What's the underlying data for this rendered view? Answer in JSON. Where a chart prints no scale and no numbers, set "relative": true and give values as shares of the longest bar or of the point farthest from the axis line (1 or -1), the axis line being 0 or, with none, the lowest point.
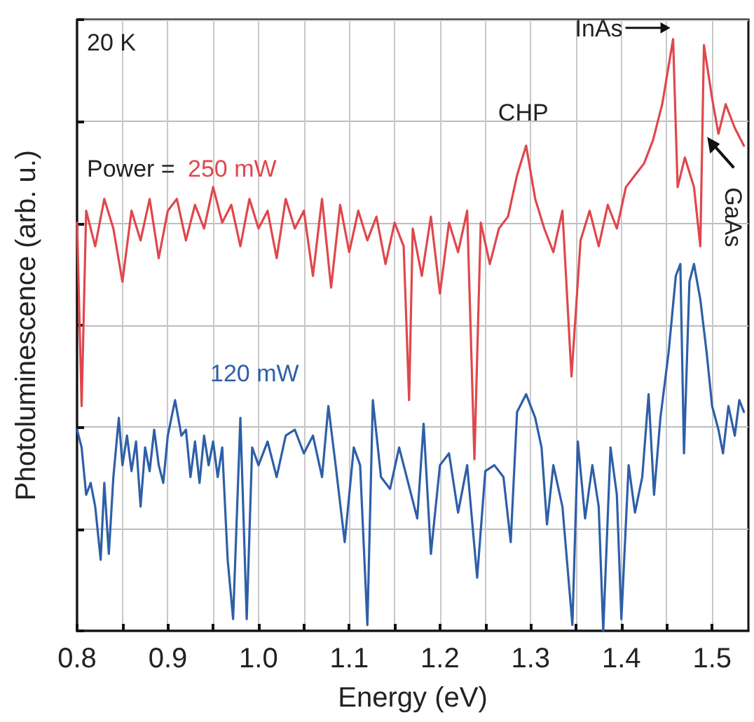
{
  "chart_data": {
    "type": "line",
    "relative": true,
    "xlabel": "Energy (eV)",
    "ylabel": "Photoluminescence (arb. u.)",
    "xlim": [
      0.8,
      1.54
    ],
    "xticks": [
      0.8,
      0.9,
      {
        "value": 1,
        "label": "1.0"
      },
      1.1,
      1.2,
      1.3,
      1.4,
      1.5
    ],
    "grid": true,
    "legend": false,
    "marker": "none",
    "line_style": "solid",
    "annotations": [
      "20 K",
      "Power =",
      {
        "text": "CHP",
        "x": 1.295,
        "y": 0.82
      },
      {
        "text": "InAs",
        "x": 1.457,
        "y": 1
      },
      {
        "text": "GaAs",
        "x": 1.49,
        "y": 0.83
      }
    ],
    "series": [
      {
        "name": "250 mW",
        "color": "#e0474c",
        "x": [
          0.8,
          0.805,
          0.81,
          0.82,
          0.83,
          0.84,
          0.85,
          0.86,
          0.87,
          0.88,
          0.89,
          0.9,
          0.91,
          0.92,
          0.93,
          0.94,
          0.95,
          0.96,
          0.97,
          0.98,
          0.99,
          1.0,
          1.01,
          1.02,
          1.03,
          1.04,
          1.05,
          1.06,
          1.07,
          1.08,
          1.09,
          1.1,
          1.11,
          1.12,
          1.13,
          1.14,
          1.15,
          1.16,
          1.166,
          1.17,
          1.18,
          1.19,
          1.2,
          1.21,
          1.22,
          1.23,
          1.238,
          1.245,
          1.255,
          1.265,
          1.275,
          1.285,
          1.295,
          1.305,
          1.315,
          1.325,
          1.335,
          1.345,
          1.355,
          1.365,
          1.375,
          1.385,
          1.395,
          1.405,
          1.415,
          1.425,
          1.435,
          1.445,
          1.457,
          1.462,
          1.47,
          1.48,
          1.487,
          1.491,
          1.5,
          1.507,
          1.515,
          1.525,
          1.535
        ],
        "values": [
          0.69,
          0.38,
          0.71,
          0.65,
          0.73,
          0.68,
          0.59,
          0.71,
          0.66,
          0.73,
          0.63,
          0.71,
          0.73,
          0.66,
          0.72,
          0.68,
          0.75,
          0.69,
          0.72,
          0.65,
          0.73,
          0.68,
          0.71,
          0.63,
          0.73,
          0.68,
          0.71,
          0.6,
          0.73,
          0.58,
          0.72,
          0.64,
          0.71,
          0.66,
          0.7,
          0.62,
          0.69,
          0.65,
          0.39,
          0.68,
          0.6,
          0.7,
          0.57,
          0.69,
          0.64,
          0.71,
          0.29,
          0.69,
          0.62,
          0.68,
          0.7,
          0.77,
          0.82,
          0.73,
          0.68,
          0.64,
          0.71,
          0.43,
          0.66,
          0.71,
          0.65,
          0.72,
          0.68,
          0.75,
          0.77,
          0.79,
          0.83,
          0.89,
          1,
          0.75,
          0.8,
          0.75,
          0.65,
          0.99,
          0.9,
          0.84,
          0.89,
          0.85,
          0.82
        ]
      },
      {
        "name": "120 mW",
        "color": "#2e5fa8",
        "x": [
          0.8,
          0.805,
          0.81,
          0.815,
          0.82,
          0.826,
          0.83,
          0.835,
          0.84,
          0.846,
          0.85,
          0.855,
          0.86,
          0.865,
          0.87,
          0.875,
          0.88,
          0.885,
          0.89,
          0.895,
          0.9,
          0.908,
          0.915,
          0.92,
          0.925,
          0.93,
          0.935,
          0.94,
          0.945,
          0.95,
          0.955,
          0.96,
          0.966,
          0.972,
          0.98,
          0.987,
          0.993,
          1.0,
          1.01,
          1.02,
          1.03,
          1.04,
          1.05,
          1.06,
          1.07,
          1.077,
          1.085,
          1.095,
          1.105,
          1.112,
          1.12,
          1.126,
          1.135,
          1.145,
          1.155,
          1.165,
          1.175,
          1.182,
          1.19,
          1.2,
          1.21,
          1.22,
          1.23,
          1.241,
          1.25,
          1.26,
          1.27,
          1.278,
          1.285,
          1.295,
          1.305,
          1.312,
          1.318,
          1.325,
          1.335,
          1.346,
          1.352,
          1.36,
          1.368,
          1.375,
          1.38,
          1.388,
          1.395,
          1.4,
          1.408,
          1.415,
          1.423,
          1.43,
          1.436,
          1.443,
          1.452,
          1.46,
          1.465,
          1.469,
          1.475,
          1.48,
          1.487,
          1.494,
          1.5,
          1.507,
          1.512,
          1.518,
          1.525,
          1.53,
          1.535
        ],
        "values": [
          0.34,
          0.31,
          0.23,
          0.25,
          0.21,
          0.12,
          0.25,
          0.13,
          0.26,
          0.36,
          0.28,
          0.33,
          0.27,
          0.32,
          0.21,
          0.31,
          0.27,
          0.34,
          0.28,
          0.25,
          0.33,
          0.39,
          0.33,
          0.34,
          0.26,
          0.32,
          0.25,
          0.33,
          0.28,
          0.32,
          0.26,
          0.31,
          0.12,
          0.02,
          0.36,
          0.02,
          0.31,
          0.28,
          0.32,
          0.26,
          0.33,
          0.34,
          0.3,
          0.33,
          0.26,
          0.38,
          0.28,
          0.15,
          0.31,
          0.28,
          0.01,
          0.39,
          0.26,
          0.24,
          0.31,
          0.25,
          0.19,
          0.35,
          0.13,
          0.28,
          0.3,
          0.2,
          0.28,
          0.09,
          0.27,
          0.28,
          0.26,
          0.15,
          0.37,
          0.4,
          0.36,
          0.31,
          0.18,
          0.28,
          0.21,
          0.01,
          0.32,
          0.19,
          0.28,
          0.21,
          0,
          0.31,
          0.23,
          0.02,
          0.28,
          0.2,
          0.26,
          0.4,
          0.23,
          0.36,
          0.47,
          0.6,
          0.62,
          0.3,
          0.59,
          0.62,
          0.56,
          0.47,
          0.38,
          0.34,
          0.3,
          0.38,
          0.33,
          0.39,
          0.37
        ]
      }
    ]
  }
}
